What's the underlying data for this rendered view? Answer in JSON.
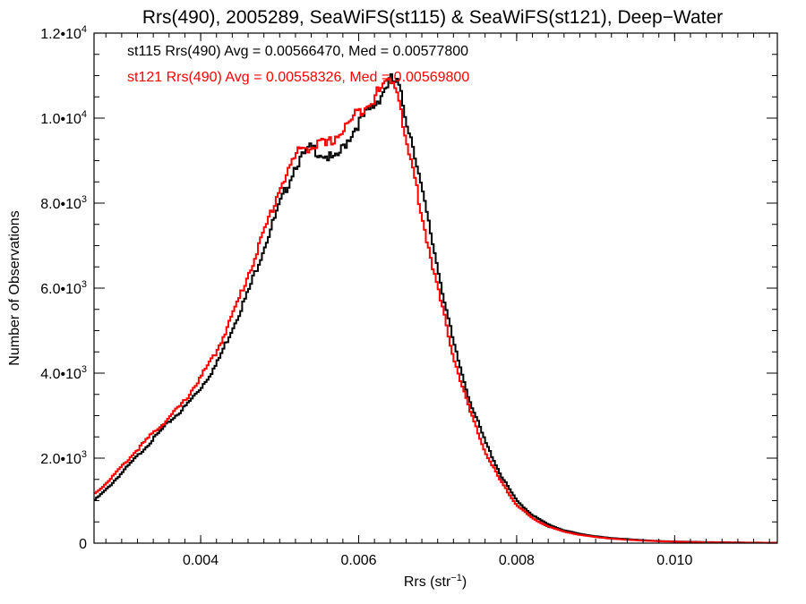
{
  "chart_data": {
    "type": "line",
    "title": "Rrs(490), 2005289, SeaWiFS(st115) & SeaWiFS(st121), Deep−Water",
    "xlabel": "Rrs (str",
    "xlabel_sup": "−1",
    "xlabel_suffix": ")",
    "ylabel": "Number of Observations",
    "xlim": [
      0.00265,
      0.0113
    ],
    "ylim": [
      0,
      12000
    ],
    "grid": false,
    "legend_position": "top-left",
    "x_ticks": [
      {
        "value": 0.004,
        "label": "0.004"
      },
      {
        "value": 0.006,
        "label": "0.006"
      },
      {
        "value": 0.008,
        "label": "0.008"
      },
      {
        "value": 0.01,
        "label": "0.010"
      }
    ],
    "y_ticks": [
      {
        "value": 0,
        "label": "0",
        "exp": ""
      },
      {
        "value": 2000,
        "label": "2.0•10",
        "exp": "3"
      },
      {
        "value": 4000,
        "label": "4.0•10",
        "exp": "3"
      },
      {
        "value": 6000,
        "label": "6.0•10",
        "exp": "3"
      },
      {
        "value": 8000,
        "label": "8.0•10",
        "exp": "3"
      },
      {
        "value": 10000,
        "label": "1.0•10",
        "exp": "4"
      },
      {
        "value": 12000,
        "label": "1.2•10",
        "exp": "4"
      }
    ],
    "series": [
      {
        "name": "st115",
        "legend": "st115 Rrs(490) Avg = 0.00566470, Med = 0.00577800",
        "color": "#000000",
        "x": [
          0.00265,
          0.0028,
          0.003,
          0.0032,
          0.0034,
          0.0036,
          0.0038,
          0.004,
          0.0042,
          0.0044,
          0.0046,
          0.0048,
          0.005,
          0.0052,
          0.0054,
          0.0055,
          0.0056,
          0.0057,
          0.0058,
          0.006,
          0.0062,
          0.0063,
          0.0064,
          0.0065,
          0.0066,
          0.0067,
          0.0068,
          0.007,
          0.0072,
          0.0074,
          0.0076,
          0.0078,
          0.008,
          0.0082,
          0.0084,
          0.0086,
          0.0088,
          0.009,
          0.0092,
          0.0094,
          0.0096,
          0.0098,
          0.01,
          0.0104,
          0.0108,
          0.0113
        ],
        "y": [
          1000,
          1250,
          1650,
          2050,
          2450,
          2850,
          3200,
          3650,
          4200,
          5050,
          5900,
          6950,
          7950,
          8900,
          9300,
          9200,
          9100,
          9000,
          9300,
          9900,
          10300,
          10600,
          10900,
          10800,
          10000,
          9300,
          8300,
          6500,
          4700,
          3400,
          2400,
          1600,
          1000,
          660,
          440,
          300,
          220,
          160,
          120,
          95,
          70,
          50,
          40,
          25,
          15,
          10
        ]
      },
      {
        "name": "st121",
        "legend": "st121 Rrs(490) Avg = 0.00558326, Med = 0.00569800",
        "color": "#ff0000",
        "x": [
          0.00265,
          0.0028,
          0.003,
          0.0032,
          0.0034,
          0.0036,
          0.0038,
          0.004,
          0.0042,
          0.0044,
          0.0046,
          0.0048,
          0.005,
          0.0052,
          0.0053,
          0.0054,
          0.0055,
          0.0056,
          0.0057,
          0.0058,
          0.006,
          0.0062,
          0.0063,
          0.0064,
          0.0065,
          0.0066,
          0.0067,
          0.0068,
          0.007,
          0.0072,
          0.0074,
          0.0076,
          0.0078,
          0.008,
          0.0082,
          0.0084,
          0.0086,
          0.0088,
          0.009,
          0.0092,
          0.0094,
          0.0096,
          0.0098,
          0.01,
          0.0104,
          0.0108,
          0.0113
        ],
        "y": [
          1150,
          1400,
          1800,
          2200,
          2600,
          2950,
          3350,
          3900,
          4500,
          5350,
          6300,
          7300,
          8350,
          9100,
          9350,
          9300,
          9400,
          9350,
          9550,
          9700,
          10150,
          10500,
          10700,
          10950,
          10700,
          9400,
          8700,
          7700,
          6000,
          4400,
          3150,
          2150,
          1450,
          900,
          580,
          390,
          270,
          195,
          145,
          105,
          80,
          60,
          45,
          35,
          20,
          12,
          8
        ]
      }
    ]
  }
}
